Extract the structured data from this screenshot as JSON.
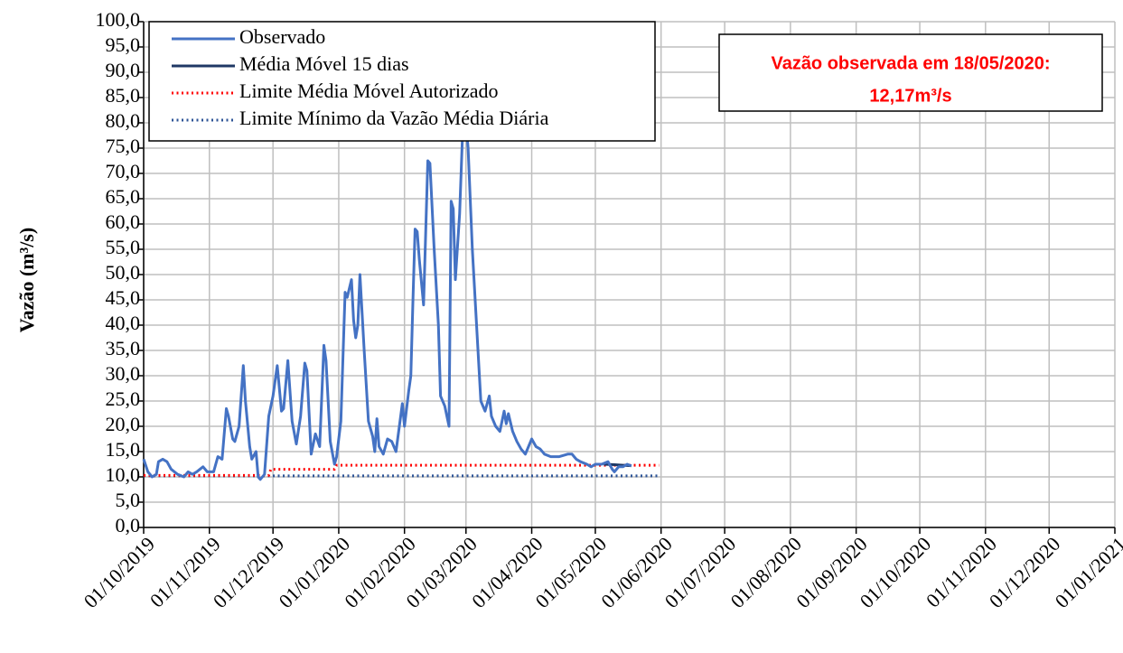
{
  "chart_data": {
    "type": "line",
    "y_label": "Vazão (m³/s)",
    "xlim": [
      "01/10/2019",
      "01/01/2021"
    ],
    "xticks": [
      "01/10/2019",
      "01/11/2019",
      "01/12/2019",
      "01/01/2020",
      "01/02/2020",
      "01/03/2020",
      "01/04/2020",
      "01/05/2020",
      "01/06/2020",
      "01/07/2020",
      "01/08/2020",
      "01/09/2020",
      "01/10/2020",
      "01/11/2020",
      "01/12/2020",
      "01/01/2021"
    ],
    "ylim": [
      0,
      100
    ],
    "yticks": [
      {
        "value": 0,
        "label": "0,0"
      },
      {
        "value": 5,
        "label": "5,0"
      },
      {
        "value": 10,
        "label": "10,0"
      },
      {
        "value": 15,
        "label": "15,0"
      },
      {
        "value": 20,
        "label": "20,0"
      },
      {
        "value": 25,
        "label": "25,0"
      },
      {
        "value": 30,
        "label": "30,0"
      },
      {
        "value": 35,
        "label": "35,0"
      },
      {
        "value": 40,
        "label": "40,0"
      },
      {
        "value": 45,
        "label": "45,0"
      },
      {
        "value": 50,
        "label": "50,0"
      },
      {
        "value": 55,
        "label": "55,0"
      },
      {
        "value": 60,
        "label": "60,0"
      },
      {
        "value": 65,
        "label": "65,0"
      },
      {
        "value": 70,
        "label": "70,0"
      },
      {
        "value": 75,
        "label": "75,0"
      },
      {
        "value": 80,
        "label": "80,0"
      },
      {
        "value": 85,
        "label": "85,0"
      },
      {
        "value": 90,
        "label": "90,0"
      },
      {
        "value": 95,
        "label": "95,0"
      },
      {
        "value": 100,
        "label": "100,0"
      }
    ],
    "grid": true,
    "legend_position": "upper left",
    "annotation": {
      "lines": [
        "Vazão observada em 18/05/2020:",
        "12,17m³/s"
      ],
      "color": "#ff0000"
    },
    "series": [
      {
        "name": "Observado",
        "color": "#4472c4",
        "line_style": "solid",
        "x": [
          "01/10/2019",
          "03/10/2019",
          "05/10/2019",
          "07/10/2019",
          "08/10/2019",
          "10/10/2019",
          "12/10/2019",
          "14/10/2019",
          "17/10/2019",
          "20/10/2019",
          "22/10/2019",
          "24/10/2019",
          "26/10/2019",
          "29/10/2019",
          "31/10/2019",
          "03/11/2019",
          "05/11/2019",
          "07/11/2019",
          "09/11/2019",
          "10/11/2019",
          "12/11/2019",
          "13/11/2019",
          "15/11/2019",
          "17/11/2019",
          "18/11/2019",
          "20/11/2019",
          "21/11/2019",
          "23/11/2019",
          "24/11/2019",
          "25/11/2019",
          "27/11/2019",
          "29/11/2019",
          "01/12/2019",
          "03/12/2019",
          "05/12/2019",
          "06/12/2019",
          "08/12/2019",
          "10/12/2019",
          "12/12/2019",
          "14/12/2019",
          "16/12/2019",
          "17/12/2019",
          "19/12/2019",
          "21/12/2019",
          "23/12/2019",
          "25/12/2019",
          "26/12/2019",
          "28/12/2019",
          "30/12/2019",
          "31/12/2019",
          "02/01/2020",
          "04/01/2020",
          "05/01/2020",
          "07/01/2020",
          "08/01/2020",
          "09/01/2020",
          "10/01/2020",
          "11/01/2020",
          "13/01/2020",
          "15/01/2020",
          "17/01/2020",
          "18/01/2020",
          "19/01/2020",
          "20/01/2020",
          "22/01/2020",
          "24/01/2020",
          "26/01/2020",
          "28/01/2020",
          "31/01/2020",
          "01/02/2020",
          "03/02/2020",
          "04/02/2020",
          "05/02/2020",
          "06/02/2020",
          "07/02/2020",
          "08/02/2020",
          "10/02/2020",
          "12/02/2020",
          "13/02/2020",
          "15/02/2020",
          "17/02/2020",
          "18/02/2020",
          "20/02/2020",
          "22/02/2020",
          "23/02/2020",
          "24/02/2020",
          "25/02/2020",
          "27/02/2020",
          "29/02/2020",
          "02/03/2020",
          "04/03/2020",
          "06/03/2020",
          "08/03/2020",
          "10/03/2020",
          "12/03/2020",
          "13/03/2020",
          "15/03/2020",
          "17/03/2020",
          "19/03/2020",
          "20/03/2020",
          "21/03/2020",
          "23/03/2020",
          "25/03/2020",
          "27/03/2020",
          "29/03/2020",
          "01/04/2020",
          "03/04/2020",
          "05/04/2020",
          "07/04/2020",
          "10/04/2020",
          "14/04/2020",
          "18/04/2020",
          "20/04/2020",
          "22/04/2020",
          "24/04/2020",
          "27/04/2020",
          "29/04/2020",
          "01/05/2020",
          "04/05/2020",
          "07/05/2020",
          "09/05/2020",
          "10/05/2020",
          "12/05/2020",
          "14/05/2020",
          "16/05/2020",
          "18/05/2020"
        ],
        "values": [
          13.5,
          11,
          10,
          10.5,
          13,
          13.5,
          13,
          11.5,
          10.5,
          10,
          11,
          10.5,
          11,
          12,
          11,
          11,
          14,
          13.5,
          23.5,
          22,
          17.5,
          17,
          20,
          32,
          25,
          16,
          13.5,
          15,
          10,
          9.5,
          10.5,
          22,
          26,
          32,
          23,
          23.5,
          33,
          21,
          16.5,
          22,
          32.5,
          31,
          14.5,
          18.5,
          16,
          36,
          33,
          17,
          12.5,
          14,
          21,
          46.5,
          45.5,
          49,
          41,
          37.5,
          40,
          50,
          35,
          21,
          18,
          15,
          21.5,
          16,
          14.5,
          17.5,
          17,
          15,
          24.5,
          20,
          27,
          30,
          45,
          59,
          58.5,
          53,
          44,
          72.5,
          72,
          55,
          40,
          26,
          24,
          20,
          64.5,
          63,
          49,
          62,
          85,
          75,
          55,
          40,
          25,
          23,
          26,
          22,
          20,
          19,
          23,
          20.5,
          22.5,
          19,
          17,
          15.5,
          14.5,
          17.5,
          16,
          15.5,
          14.5,
          14,
          14,
          14.5,
          14.5,
          13.5,
          13,
          12.5,
          12,
          12.5,
          12.5,
          13,
          11.5,
          11,
          12,
          12,
          12.5,
          12.17
        ]
      },
      {
        "name": "Média Móvel 15 dias",
        "color": "#1f3864",
        "line_style": "solid",
        "x": [
          "05/05/2020",
          "10/05/2020",
          "14/05/2020",
          "18/05/2020"
        ],
        "values": [
          12.5,
          12.4,
          12.3,
          12.2
        ]
      },
      {
        "name": "Limite Média Móvel Autorizado",
        "color": "#ff0000",
        "line_style": "dotted",
        "x": [
          "01/10/2019",
          "29/11/2019",
          "30/11/2019",
          "30/12/2019",
          "31/12/2019",
          "31/05/2020"
        ],
        "values": [
          10.3,
          10.3,
          11.5,
          11.5,
          12.3,
          12.3
        ]
      },
      {
        "name": "Limite Mínimo da Vazão Média Diária",
        "color": "#2f5597",
        "line_style": "dotted",
        "x": [
          "01/10/2019",
          "31/05/2020"
        ],
        "values": [
          10.2,
          10.2
        ]
      }
    ]
  }
}
